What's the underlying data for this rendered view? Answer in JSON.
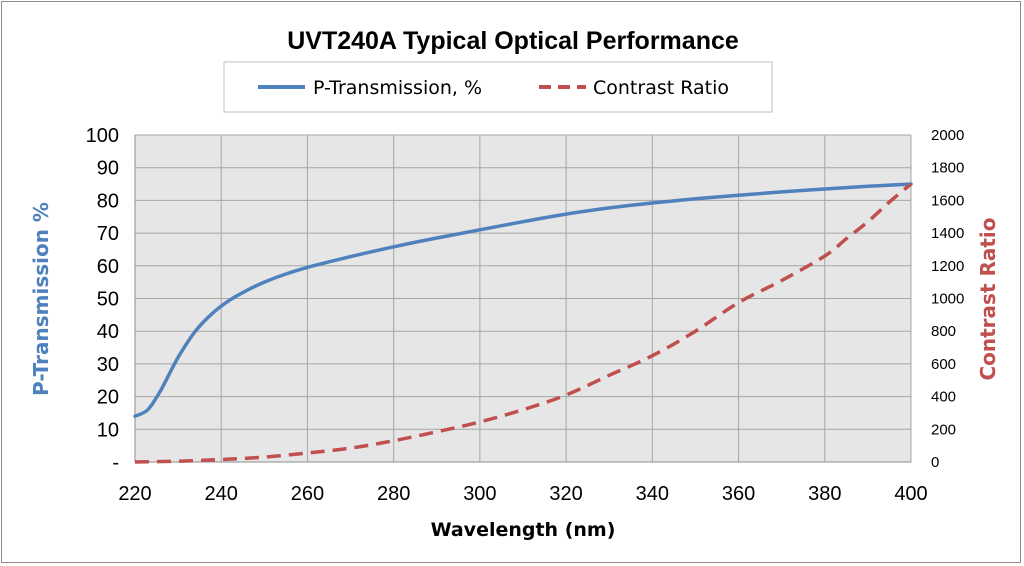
{
  "chart_data": {
    "type": "line",
    "title": "UVT240A Typical Optical Performance",
    "xlabel": "Wavelength (nm)",
    "ylabel": "P-Transmission %",
    "y2label": "Contrast Ratio",
    "xlim": [
      220,
      400
    ],
    "ylim": [
      0,
      100
    ],
    "y2lim": [
      0,
      2000
    ],
    "grid": true,
    "legend": "top",
    "x_ticks": [
      "220",
      "240",
      "260",
      "280",
      "300",
      "320",
      "340",
      "360",
      "380",
      "400"
    ],
    "y_ticks": [
      "-",
      "10",
      "20",
      "30",
      "40",
      "50",
      "60",
      "70",
      "80",
      "90",
      "100"
    ],
    "y2_ticks": [
      "0",
      "200",
      "400",
      "600",
      "800",
      "1000",
      "1200",
      "1400",
      "1600",
      "1800",
      "2000"
    ],
    "series": [
      {
        "name": "P-Transmission, %",
        "axis": "left",
        "color": "#4f81bd",
        "style": "solid",
        "x": [
          220,
          223,
          226,
          230,
          234,
          238,
          242,
          246,
          250,
          255,
          260,
          270,
          280,
          290,
          300,
          310,
          320,
          330,
          340,
          350,
          360,
          370,
          380,
          390,
          400
        ],
        "y": [
          14,
          16,
          22,
          32,
          40,
          45.5,
          49.5,
          52.5,
          55,
          57.5,
          59.5,
          62.8,
          65.8,
          68.5,
          71,
          73.5,
          75.8,
          77.7,
          79.2,
          80.5,
          81.6,
          82.6,
          83.5,
          84.3,
          85
        ]
      },
      {
        "name": "Contrast Ratio",
        "axis": "right",
        "color": "#c0504d",
        "style": "dashed",
        "x": [
          220,
          230,
          240,
          250,
          260,
          270,
          280,
          290,
          300,
          310,
          320,
          330,
          340,
          350,
          360,
          370,
          380,
          385,
          390,
          395,
          400
        ],
        "y": [
          0,
          5,
          15,
          30,
          55,
          85,
          130,
          185,
          245,
          320,
          410,
          530,
          650,
          800,
          975,
          1110,
          1260,
          1365,
          1470,
          1590,
          1700
        ]
      }
    ]
  }
}
